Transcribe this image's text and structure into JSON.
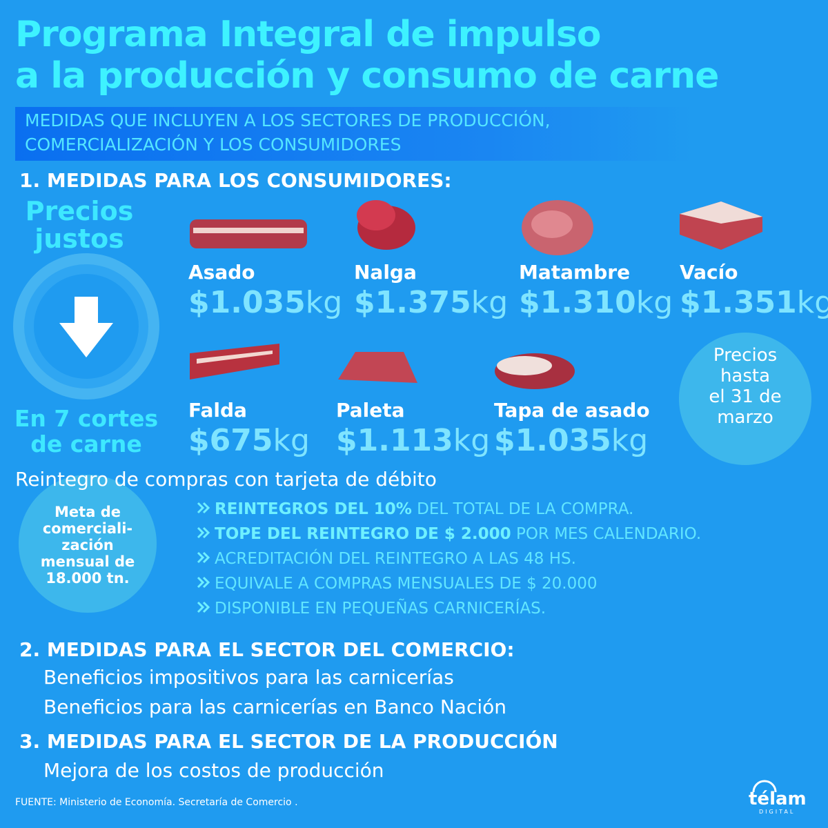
{
  "header": {
    "title_lines": [
      "Programa Integral de impulso",
      "a la producción y consumo de carne"
    ],
    "subtitle_lines": [
      "MEDIDAS QUE INCLUYEN A LOS SECTORES DE PRODUCCIÓN,",
      "COMERCIALIZACIÓN Y LOS CONSUMIDORES"
    ]
  },
  "section1": {
    "heading": "1. MEDIDAS PARA LOS CONSUMIDORES:",
    "side_title_lines": [
      "Precios",
      "justos"
    ],
    "side_caption_lines": [
      "En 7 cortes",
      "de carne"
    ],
    "cuts": [
      {
        "name": "Asado",
        "price": "$1.035",
        "unit": "kg"
      },
      {
        "name": "Nalga",
        "price": "$1.375",
        "unit": "kg"
      },
      {
        "name": "Matambre",
        "price": "$1.310",
        "unit": "kg"
      },
      {
        "name": "Vacío",
        "price": "$1.351",
        "unit": "kg"
      },
      {
        "name": "Falda",
        "price": "$675",
        "unit": "kg"
      },
      {
        "name": "Paleta",
        "price": "$1.113",
        "unit": "kg"
      },
      {
        "name": "Tapa de asado",
        "price": "$1.035",
        "unit": "kg"
      }
    ],
    "validity_lines": [
      "Precios",
      "hasta",
      "el 31 de",
      "marzo"
    ],
    "refund_title": "Reintegro de compras con tarjeta de débito",
    "goal_lines": [
      "Meta de",
      "comerciali-",
      "zación",
      "mensual de",
      "18.000 tn."
    ],
    "bullets": [
      {
        "bold": "REINTEGROS DEL 10%",
        "text": " DEL TOTAL DE LA COMPRA."
      },
      {
        "bold": "TOPE DEL REINTEGRO DE $ 2.000",
        "text": " POR MES CALENDARIO."
      },
      {
        "bold": "",
        "text": "ACREDITACIÓN DEL REINTEGRO A LAS 48 HS."
      },
      {
        "bold": "",
        "text": "EQUIVALE A COMPRAS MENSUALES DE $ 20.000"
      },
      {
        "bold": "",
        "text": "DISPONIBLE EN PEQUEÑAS CARNICERÍAS."
      }
    ]
  },
  "section2": {
    "heading": "2. MEDIDAS PARA EL SECTOR DEL COMERCIO:",
    "items": [
      "Beneficios impositivos para las carnicerías",
      "Beneficios para las carnicerías en Banco Nación"
    ]
  },
  "section3": {
    "heading": "3. MEDIDAS PARA EL SECTOR DE LA PRODUCCIÓN",
    "items": [
      "Mejora de los costos de producción"
    ]
  },
  "footer": {
    "source": "FUENTE: Ministerio de Economía. Secretaría de Comercio .",
    "logo": "télam",
    "logo_sub": "DIGITAL"
  }
}
